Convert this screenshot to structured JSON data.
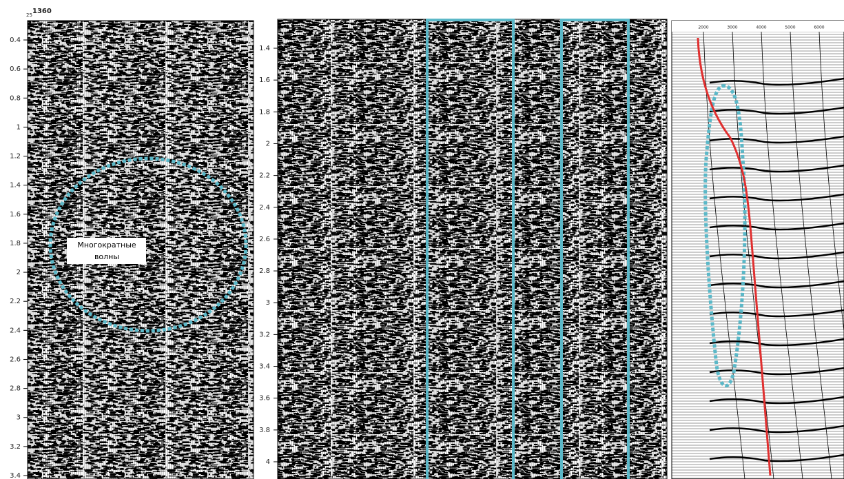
{
  "header": {
    "trace_label": "1360",
    "trace_label_small": "25"
  },
  "panels": [
    {
      "y_ticks": [
        "0.4",
        "0.6",
        "0.8",
        "1",
        "1.2",
        "1.4",
        "1.6",
        "1.8",
        "2",
        "2.2",
        "2.4",
        "2.6",
        "2.8",
        "3",
        "3.2",
        "3.4"
      ],
      "annotation": [
        "Многократные",
        "волны"
      ]
    },
    {
      "y_ticks": [
        "1.4",
        "1.6",
        "1.8",
        "2",
        "2.2",
        "2.4",
        "2.6",
        "2.8",
        "3",
        "3.2",
        "3.4",
        "3.6",
        "3.8",
        "4"
      ]
    },
    {
      "x_ticks": [
        "2000",
        "3000",
        "4000",
        "5000",
        "6000"
      ]
    }
  ]
}
